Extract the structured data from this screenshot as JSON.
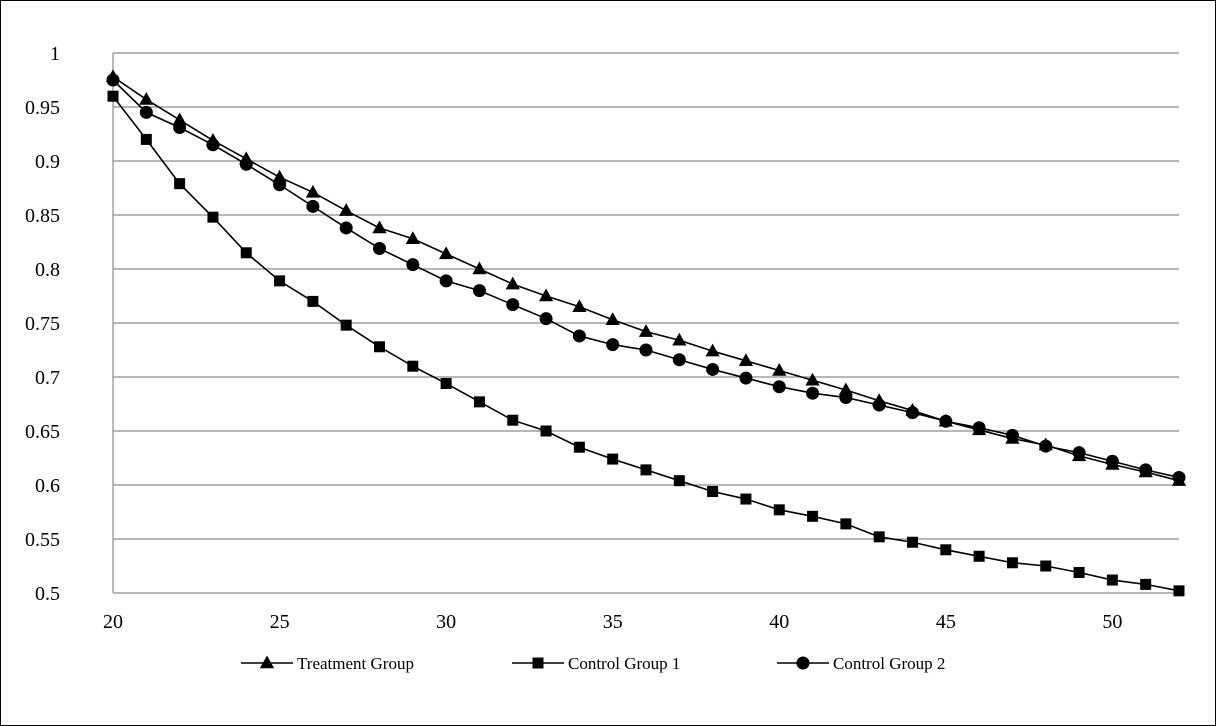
{
  "chart_data": {
    "type": "line",
    "title": "",
    "xlabel": "",
    "ylabel": "",
    "xlim": [
      20,
      52
    ],
    "ylim": [
      0.5,
      1
    ],
    "x_ticks": [
      20,
      25,
      30,
      35,
      40,
      45,
      50
    ],
    "x_tick_labels": [
      "20",
      "25",
      "30",
      "35",
      "40",
      "45",
      "50"
    ],
    "y_ticks": [
      0.5,
      0.55,
      0.6,
      0.65,
      0.7,
      0.75,
      0.8,
      0.85,
      0.9,
      0.95,
      1
    ],
    "y_tick_labels": [
      "0.5",
      "0.55",
      "0.6",
      "0.65",
      "0.7",
      "0.75",
      "0.8",
      "0.85",
      "0.9",
      "0.95",
      "1"
    ],
    "grid": "horizontal",
    "legend_position": "bottom",
    "x": [
      20,
      21,
      22,
      23,
      24,
      25,
      26,
      27,
      28,
      29,
      30,
      31,
      32,
      33,
      34,
      35,
      36,
      37,
      38,
      39,
      40,
      41,
      42,
      43,
      44,
      45,
      46,
      47,
      48,
      49,
      50,
      51,
      52
    ],
    "series": [
      {
        "name": "Treatment Group",
        "marker": "triangle",
        "color": "#000000",
        "values": [
          0.978,
          0.957,
          0.938,
          0.919,
          0.902,
          0.885,
          0.871,
          0.854,
          0.838,
          0.828,
          0.814,
          0.8,
          0.786,
          0.775,
          0.765,
          0.753,
          0.742,
          0.734,
          0.724,
          0.715,
          0.706,
          0.697,
          0.688,
          0.678,
          0.669,
          0.659,
          0.651,
          0.643,
          0.637,
          0.627,
          0.619,
          0.612,
          0.604
        ]
      },
      {
        "name": "Control Group 1",
        "marker": "square",
        "color": "#000000",
        "values": [
          0.96,
          0.92,
          0.879,
          0.848,
          0.815,
          0.789,
          0.77,
          0.748,
          0.728,
          0.71,
          0.694,
          0.677,
          0.66,
          0.65,
          0.635,
          0.624,
          0.614,
          0.604,
          0.594,
          0.587,
          0.577,
          0.571,
          0.564,
          0.552,
          0.547,
          0.54,
          0.534,
          0.528,
          0.525,
          0.519,
          0.512,
          0.508,
          0.502
        ]
      },
      {
        "name": "Control Group 2",
        "marker": "circle",
        "color": "#000000",
        "values": [
          0.975,
          0.945,
          0.931,
          0.915,
          0.897,
          0.878,
          0.858,
          0.838,
          0.819,
          0.804,
          0.789,
          0.78,
          0.767,
          0.754,
          0.738,
          0.73,
          0.725,
          0.716,
          0.707,
          0.699,
          0.691,
          0.685,
          0.681,
          0.674,
          0.667,
          0.659,
          0.653,
          0.646,
          0.636,
          0.63,
          0.622,
          0.614,
          0.607
        ]
      }
    ],
    "colors": {
      "grid": "#8c8c8c",
      "axis": "#8c8c8c",
      "series": "#000000"
    }
  }
}
